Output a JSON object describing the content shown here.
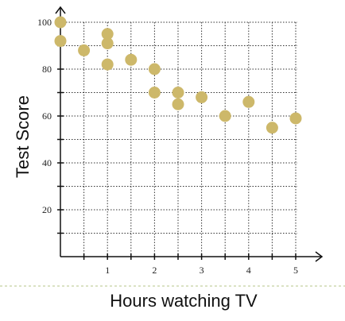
{
  "chart_data": {
    "type": "scatter",
    "title": "",
    "xlabel": "Hours watching TV",
    "ylabel": "Test Score",
    "xlim": [
      0,
      5.5
    ],
    "ylim": [
      0,
      100
    ],
    "grid": true,
    "x_ticks": [
      1,
      2,
      3,
      4,
      5
    ],
    "x_tick_labels": [
      "1",
      "2",
      "3",
      "4",
      "5"
    ],
    "y_ticks": [
      20,
      40,
      60,
      80,
      100
    ],
    "y_tick_labels": [
      "20",
      "40",
      "60",
      "80",
      "100"
    ],
    "points": [
      {
        "x": 0,
        "y": 100
      },
      {
        "x": 0,
        "y": 92
      },
      {
        "x": 0.5,
        "y": 88
      },
      {
        "x": 1,
        "y": 95
      },
      {
        "x": 1,
        "y": 91
      },
      {
        "x": 1,
        "y": 82
      },
      {
        "x": 1.5,
        "y": 84
      },
      {
        "x": 2,
        "y": 80
      },
      {
        "x": 2,
        "y": 70
      },
      {
        "x": 2.5,
        "y": 70
      },
      {
        "x": 2.5,
        "y": 65
      },
      {
        "x": 3,
        "y": 68
      },
      {
        "x": 3.5,
        "y": 60
      },
      {
        "x": 4,
        "y": 66
      },
      {
        "x": 4.5,
        "y": 55
      },
      {
        "x": 5,
        "y": 59
      }
    ],
    "colors": {
      "point": "#cdb86a",
      "axis": "#111111",
      "grid": "#333333",
      "separator": "#b7c48a"
    }
  }
}
